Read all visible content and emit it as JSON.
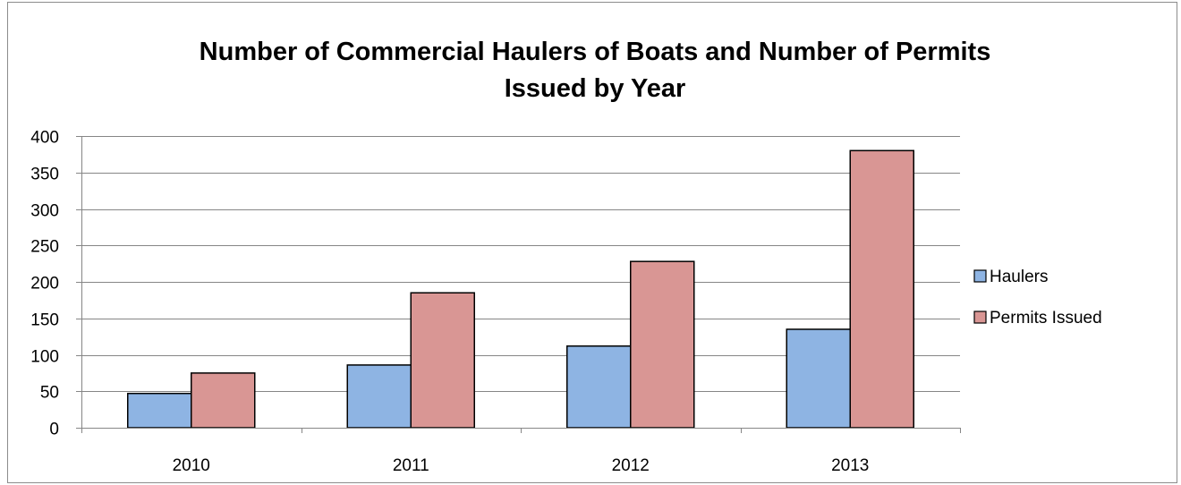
{
  "chart_data": {
    "type": "bar",
    "title_lines": [
      "Number of Commercial Haulers of Boats and Number of Permits",
      "Issued by Year"
    ],
    "categories": [
      "2010",
      "2011",
      "2012",
      "2013"
    ],
    "series": [
      {
        "name": "Haulers",
        "values": [
          47,
          86,
          112,
          135
        ],
        "color": "#8eb4e3"
      },
      {
        "name": "Permits Issued",
        "values": [
          75,
          185,
          228,
          380
        ],
        "color": "#d99694"
      }
    ],
    "ylim": [
      0,
      400
    ],
    "yticks": [
      "0",
      "50",
      "100",
      "150",
      "200",
      "250",
      "300",
      "350",
      "400"
    ],
    "grid": true,
    "legend_position": "right",
    "xlabel": "",
    "ylabel": ""
  }
}
